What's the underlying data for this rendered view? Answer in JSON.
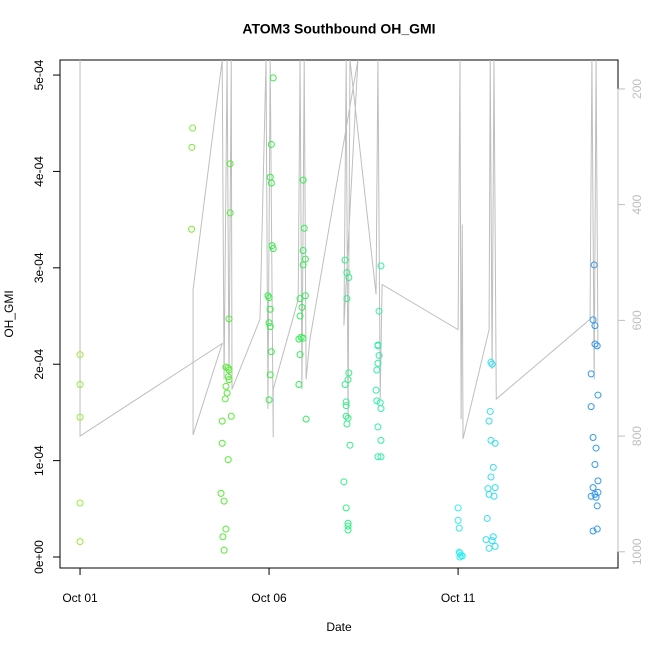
{
  "chart_data": {
    "type": "scatter",
    "title": "ATOM3 Southbound OH_GMI",
    "x_label": "Date",
    "y_label": "OH_GMI",
    "xlim": [
      0.47,
      15.23
    ],
    "xticks": [
      {
        "value": 1,
        "label": "Oct 01"
      },
      {
        "value": 6,
        "label": "Oct 06"
      },
      {
        "value": 11,
        "label": "Oct 11"
      }
    ],
    "ylim": [
      -1.14e-05,
      0.0005156
    ],
    "yticks": [
      {
        "value": 0,
        "label": "0e+00"
      },
      {
        "value": 0.0001,
        "label": "1e-04"
      },
      {
        "value": 0.0002,
        "label": "2e-04"
      },
      {
        "value": 0.0003,
        "label": "3e-04"
      },
      {
        "value": 0.0004,
        "label": "4e-04"
      },
      {
        "value": 0.0005,
        "label": "5e-04"
      }
    ],
    "y2lim": [
      1028,
      150
    ],
    "y2ticks": [
      200,
      400,
      600,
      800,
      1000
    ],
    "y2_color": "#bebebe",
    "series": [
      {
        "type": "line",
        "axis": "y2",
        "color": "#bebebe",
        "x": [
          1.0,
          1.0,
          4.76,
          3.99,
          3.99,
          4.76,
          4.81,
          4.89,
          4.94,
          5.0,
          5.02,
          5.76,
          5.92,
          5.97,
          6.03,
          6.11,
          6.11,
          6.77,
          6.82,
          6.87,
          6.93,
          6.98,
          7.08,
          8.35,
          7.98,
          8.04,
          8.09,
          8.14,
          8.83,
          8.88,
          8.94,
          8.99,
          11.0,
          11.05,
          11.08,
          11.11,
          11.13,
          11.82,
          11.85,
          11.9,
          11.95,
          12.01,
          14.49,
          14.54,
          14.6,
          14.65,
          14.7
        ],
        "values": [
          150,
          800,
          640,
          798,
          547,
          150,
          702,
          150,
          702,
          150,
          719,
          598,
          150,
          753,
          150,
          802,
          719,
          564,
          150,
          719,
          150,
          702,
          633,
          150,
          609,
          150,
          771,
          150,
          555,
          150,
          736,
          538,
          616,
          150,
          771,
          434,
          805,
          616,
          150,
          684,
          150,
          736,
          598,
          150,
          702,
          150,
          650
        ]
      },
      {
        "color": "#99ee33",
        "x": [
          1.0,
          1.0,
          1.0,
          1.0,
          1.0
        ],
        "values": [
          0.00021,
          0.000179,
          0.000145,
          5.6e-05,
          1.6e-05
        ]
      },
      {
        "color": "#77ee33",
        "x": [
          3.98,
          3.96,
          3.95
        ],
        "values": [
          0.000445,
          0.000425,
          0.00034
        ]
      },
      {
        "color": "#55ee33",
        "x": [
          4.97,
          4.97,
          4.94,
          4.86,
          4.92,
          4.94,
          4.92,
          4.94,
          4.86,
          4.89,
          4.84,
          5.0,
          4.76,
          4.76,
          4.92,
          4.73,
          4.81,
          4.86,
          4.78,
          4.81
        ],
        "values": [
          0.000408,
          0.000357,
          0.000247,
          0.000197,
          0.000196,
          0.000194,
          0.000187,
          0.000184,
          0.000177,
          0.00017,
          0.000164,
          0.000146,
          0.000141,
          0.000118,
          0.000101,
          6.6e-05,
          5.8e-05,
          2.9e-05,
          2.1e-05,
          7e-06
        ]
      },
      {
        "color": "#33ee44",
        "x": [
          6.11,
          6.06,
          6.03,
          6.06,
          6.08,
          6.11,
          5.97,
          6.0,
          6.03,
          6.0,
          6.03,
          6.06,
          6.03,
          6.0
        ],
        "values": [
          0.000497,
          0.000428,
          0.000394,
          0.000388,
          0.000323,
          0.00032,
          0.000271,
          0.000269,
          0.000257,
          0.000243,
          0.000239,
          0.000213,
          0.000189,
          0.000163
        ]
      },
      {
        "color": "#33ee55",
        "x": [
          6.9,
          6.93,
          6.9,
          6.96,
          6.9,
          6.96,
          6.82,
          6.87,
          6.82,
          6.85,
          6.9,
          6.79,
          6.82,
          6.79,
          6.98
        ],
        "values": [
          0.000391,
          0.000341,
          0.000318,
          0.000309,
          0.000303,
          0.000271,
          0.000268,
          0.000259,
          0.00025,
          0.000228,
          0.000227,
          0.000226,
          0.00021,
          0.000179,
          0.000143
        ]
      },
      {
        "color": "#33ee88",
        "x": [
          8.01,
          8.06,
          8.11,
          8.06,
          8.11,
          8.01,
          8.09,
          8.04,
          8.04,
          8.04,
          8.09,
          8.06,
          8.14,
          7.98,
          8.04,
          8.09,
          8.09,
          8.09
        ],
        "values": [
          0.000308,
          0.000295,
          0.00029,
          0.000268,
          0.000191,
          0.000179,
          0.000184,
          0.000161,
          0.000157,
          0.000146,
          0.000144,
          0.000138,
          0.000116,
          7.8e-05,
          5.1e-05,
          3.5e-05,
          3.2e-05,
          2.8e-05
        ]
      },
      {
        "color": "#33eeaa",
        "x": [
          8.96,
          8.91,
          8.88,
          8.88,
          8.91,
          8.88,
          8.85,
          8.83,
          8.85,
          8.94,
          8.96,
          8.88,
          8.96,
          8.88,
          8.96
        ],
        "values": [
          0.000302,
          0.000255,
          0.00022,
          0.000219,
          0.000209,
          0.000201,
          0.000194,
          0.000173,
          0.000162,
          0.00016,
          0.000154,
          0.000135,
          0.000121,
          0.000104,
          0.000104
        ]
      },
      {
        "color": "#33eeee",
        "x": [
          11.0,
          11.0,
          11.03,
          11.03,
          11.05,
          11.08,
          11.11,
          11.05
        ],
        "values": [
          5.1e-05,
          3.8e-05,
          3e-05,
          5e-06,
          4e-06,
          2e-06,
          1e-06,
          0.0
        ]
      },
      {
        "color": "#33e0f0",
        "x": [
          11.87,
          11.9,
          11.85,
          11.82,
          11.87,
          11.98,
          11.93,
          11.87,
          11.79,
          11.98,
          11.82,
          11.95,
          11.77,
          11.93,
          11.9,
          11.74,
          11.98,
          11.82
        ],
        "values": [
          0.000202,
          0.0002,
          0.000151,
          0.000141,
          0.000121,
          0.000118,
          9.3e-05,
          8.3e-05,
          7.1e-05,
          7.2e-05,
          6.5e-05,
          6.3e-05,
          4e-05,
          2.1e-05,
          1.7e-05,
          1.8e-05,
          1.1e-05,
          9e-06
        ]
      },
      {
        "color": "#3399ee",
        "x": [
          14.6,
          14.57,
          14.62,
          14.62,
          14.68,
          14.52,
          14.7,
          14.52,
          14.57,
          14.65,
          14.62,
          14.7,
          14.57,
          14.7,
          14.52,
          14.65,
          14.62,
          14.68,
          14.57,
          14.68
        ],
        "values": [
          0.000303,
          0.000246,
          0.00024,
          0.000221,
          0.000219,
          0.00019,
          0.000168,
          0.000156,
          0.000124,
          0.000113,
          9.6e-05,
          7.9e-05,
          7.2e-05,
          6.7e-05,
          6.3e-05,
          6.2e-05,
          6.5e-05,
          5.3e-05,
          2.7e-05,
          2.9e-05
        ]
      }
    ]
  }
}
